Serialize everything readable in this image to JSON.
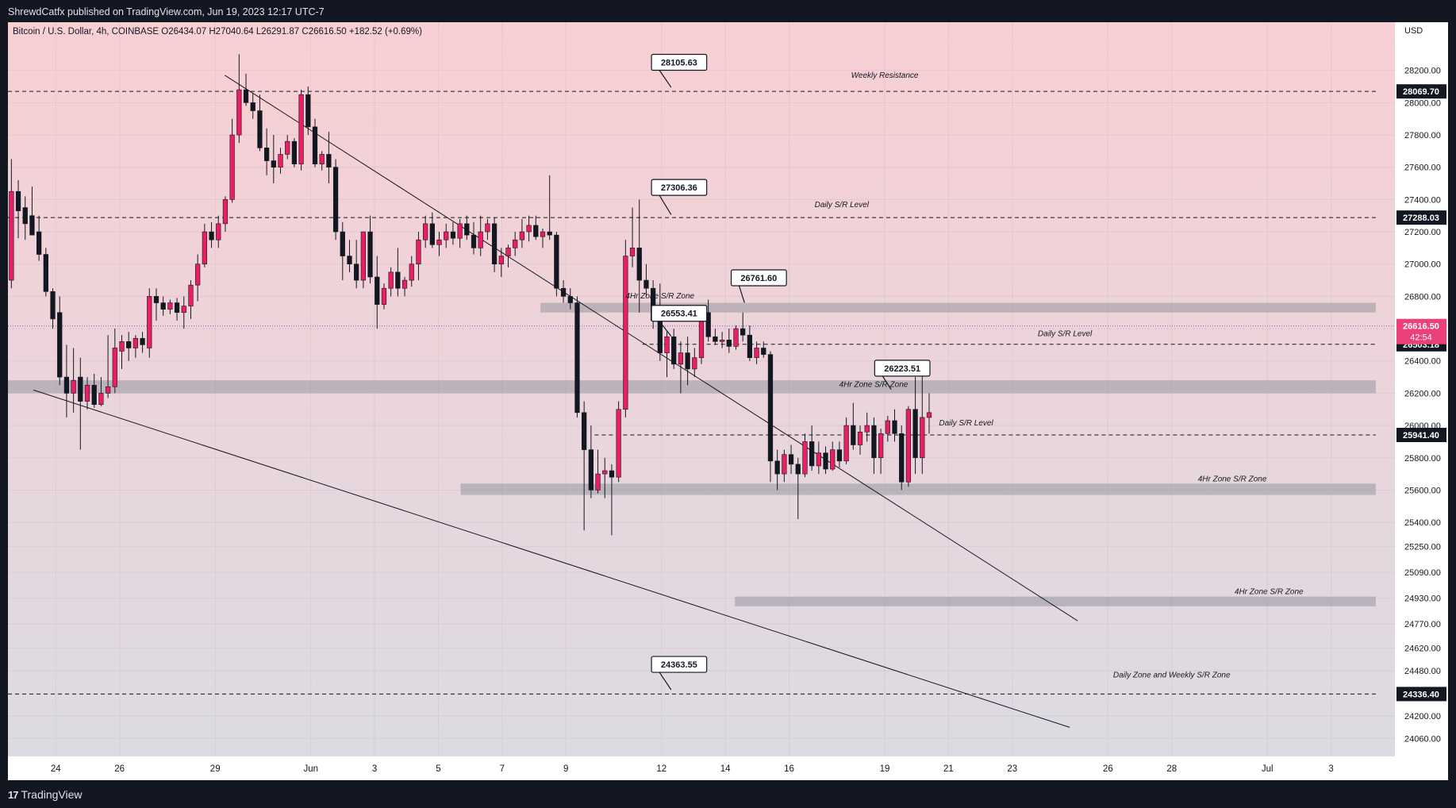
{
  "header": {
    "publisher_line": "ShrewdCatfx published on TradingView.com, Jun 19, 2023 12:17 UTC-7"
  },
  "symbol_line": "Bitcoin / U.S. Dollar, 4h, COINBASE  O26434.07  H27040.64  L26291.87  C26616.50  +182.52 (+0.69%)",
  "currency": "USD",
  "footer": {
    "logo_mark": "17",
    "logo_text": "TradingView"
  },
  "colors": {
    "background_top": "#f8cfd3",
    "background_bottom": "#dcdbe3",
    "up_candle": "#e91e63",
    "down_candle": "#131722",
    "zone": "#9598a1",
    "price_label": "#131722",
    "current_price": "#ec407a",
    "current_price_line": "#7e57c2"
  },
  "chart_data": {
    "type": "candlestick",
    "timeframe": "4h",
    "ylim": [
      23950,
      28400
    ],
    "xlim": [
      0,
      87
    ],
    "y_ticks": [
      "28200.00",
      "28000.00",
      "27800.00",
      "27600.00",
      "27400.00",
      "27200.00",
      "27000.00",
      "26800.00",
      "26600.00",
      "26400.00",
      "26200.00",
      "26000.00",
      "25800.00",
      "25600.00",
      "25400.00",
      "25250.00",
      "25090.00",
      "24930.00",
      "24770.00",
      "24620.00",
      "24480.00",
      "24200.00",
      "24060.00"
    ],
    "x_ticks": [
      {
        "label": "24",
        "x": 3
      },
      {
        "label": "26",
        "x": 7
      },
      {
        "label": "29",
        "x": 13
      },
      {
        "label": "Jun",
        "x": 19
      },
      {
        "label": "3",
        "x": 23
      },
      {
        "label": "5",
        "x": 27
      },
      {
        "label": "7",
        "x": 31
      },
      {
        "label": "9",
        "x": 35
      },
      {
        "label": "12",
        "x": 41
      },
      {
        "label": "14",
        "x": 45
      },
      {
        "label": "16",
        "x": 49
      },
      {
        "label": "19",
        "x": 55
      },
      {
        "label": "21",
        "x": 59
      },
      {
        "label": "23",
        "x": 63
      },
      {
        "label": "26",
        "x": 69
      },
      {
        "label": "28",
        "x": 73
      },
      {
        "label": "Jul",
        "x": 79
      },
      {
        "label": "3",
        "x": 83
      }
    ],
    "current_price": {
      "value": 26616.5,
      "label": "26616.50",
      "countdown": "42:54"
    },
    "price_levels": [
      {
        "value": 28069.7,
        "label": "28069.70"
      },
      {
        "value": 27288.03,
        "label": "27288.03"
      },
      {
        "value": 26503.18,
        "label": "26503.18"
      },
      {
        "value": 25941.4,
        "label": "25941.40"
      },
      {
        "value": 24336.4,
        "label": "24336.40"
      }
    ],
    "horizontal_lines": [
      {
        "value": 28069.7,
        "x_start": 0,
        "x_end": 85.8
      },
      {
        "value": 27288.03,
        "x_start": 0,
        "x_end": 85.8
      },
      {
        "value": 26503.18,
        "x_start": 39.8,
        "x_end": 85.8
      },
      {
        "value": 25941.4,
        "x_start": 36.8,
        "x_end": 85.8
      },
      {
        "value": 24336.4,
        "x_start": 0,
        "x_end": 85.8
      }
    ],
    "zones": [
      {
        "low": 26700,
        "high": 26760,
        "x_start": 33.4,
        "x_end": 85.8
      },
      {
        "low": 26200,
        "high": 26280,
        "x_start": 0,
        "x_end": 85.8
      },
      {
        "low": 25570,
        "high": 25640,
        "x_start": 28.4,
        "x_end": 85.8
      },
      {
        "low": 24880,
        "high": 24940,
        "x_start": 45.6,
        "x_end": 85.8
      }
    ],
    "trendlines": [
      {
        "x1": 13.6,
        "y1": 28170,
        "x2": 67.1,
        "y2": 24790
      },
      {
        "x1": 1.6,
        "y1": 26220,
        "x2": 66.6,
        "y2": 24130
      }
    ],
    "annotations": [
      {
        "text": "Weekly Resistance",
        "x": 55.0,
        "y": 28155
      },
      {
        "text": "Daily S/R Level",
        "x": 52.3,
        "y": 27353
      },
      {
        "text": "4Hr Zone S/R Zone",
        "x": 40.9,
        "y": 26788
      },
      {
        "text": "Daily S/R Level",
        "x": 66.3,
        "y": 26553
      },
      {
        "text": "4Hr Zone S/R Zone",
        "x": 54.3,
        "y": 26240
      },
      {
        "text": "Daily S/R Level",
        "x": 60.1,
        "y": 26000
      },
      {
        "text": "4Hr Zone S/R Zone",
        "x": 76.8,
        "y": 25655
      },
      {
        "text": "4Hr Zone S/R Zone",
        "x": 79.1,
        "y": 24955
      },
      {
        "text": "Daily Zone and Weekly S/R Zone",
        "x": 73.0,
        "y": 24440
      }
    ],
    "callouts": [
      {
        "text": "28105.63",
        "box_x": 42.1,
        "box_y": 28250,
        "point_x": 41.6,
        "point_y": 28095
      },
      {
        "text": "27306.36",
        "box_x": 42.1,
        "box_y": 27475,
        "point_x": 41.6,
        "point_y": 27306
      },
      {
        "text": "26761.60",
        "box_x": 47.1,
        "box_y": 26915,
        "point_x": 46.2,
        "point_y": 26761
      },
      {
        "text": "26553.41",
        "box_x": 42.1,
        "box_y": 26695,
        "point_x": 41.6,
        "point_y": 26553
      },
      {
        "text": "26223.51",
        "box_x": 56.1,
        "box_y": 26355,
        "point_x": 55.4,
        "point_y": 26223
      },
      {
        "text": "24363.55",
        "box_x": 42.1,
        "box_y": 24520,
        "point_x": 41.6,
        "point_y": 24363
      }
    ],
    "candles": [
      {
        "o": 26900,
        "h": 27650,
        "l": 26850,
        "c": 27450
      },
      {
        "o": 27450,
        "h": 27520,
        "l": 27160,
        "c": 27330
      },
      {
        "o": 27350,
        "h": 27420,
        "l": 27150,
        "c": 27250
      },
      {
        "o": 27300,
        "h": 27480,
        "l": 27180,
        "c": 27180
      },
      {
        "o": 27200,
        "h": 27300,
        "l": 27020,
        "c": 27060
      },
      {
        "o": 27060,
        "h": 27100,
        "l": 26800,
        "c": 26830
      },
      {
        "o": 26830,
        "h": 26850,
        "l": 26600,
        "c": 26660
      },
      {
        "o": 26700,
        "h": 26800,
        "l": 26250,
        "c": 26300
      },
      {
        "o": 26300,
        "h": 26500,
        "l": 26050,
        "c": 26200
      },
      {
        "o": 26200,
        "h": 26480,
        "l": 26080,
        "c": 26280
      },
      {
        "o": 26300,
        "h": 26420,
        "l": 25850,
        "c": 26150
      },
      {
        "o": 26150,
        "h": 26300,
        "l": 26100,
        "c": 26250
      },
      {
        "o": 26250,
        "h": 26320,
        "l": 26110,
        "c": 26130
      },
      {
        "o": 26130,
        "h": 26300,
        "l": 26120,
        "c": 26200
      },
      {
        "o": 26200,
        "h": 26560,
        "l": 26170,
        "c": 26240
      },
      {
        "o": 26240,
        "h": 26600,
        "l": 26200,
        "c": 26480
      },
      {
        "o": 26460,
        "h": 26560,
        "l": 26350,
        "c": 26520
      },
      {
        "o": 26520,
        "h": 26580,
        "l": 26400,
        "c": 26480
      },
      {
        "o": 26480,
        "h": 26560,
        "l": 26420,
        "c": 26540
      },
      {
        "o": 26540,
        "h": 26580,
        "l": 26450,
        "c": 26500
      },
      {
        "o": 26480,
        "h": 26850,
        "l": 26420,
        "c": 26800
      },
      {
        "o": 26800,
        "h": 26850,
        "l": 26650,
        "c": 26760
      },
      {
        "o": 26760,
        "h": 26800,
        "l": 26680,
        "c": 26720
      },
      {
        "o": 26720,
        "h": 26780,
        "l": 26690,
        "c": 26760
      },
      {
        "o": 26760,
        "h": 26790,
        "l": 26650,
        "c": 26700
      },
      {
        "o": 26700,
        "h": 26800,
        "l": 26600,
        "c": 26740
      },
      {
        "o": 26740,
        "h": 26900,
        "l": 26660,
        "c": 26870
      },
      {
        "o": 26870,
        "h": 27060,
        "l": 26770,
        "c": 27000
      },
      {
        "o": 27000,
        "h": 27250,
        "l": 26980,
        "c": 27200
      },
      {
        "o": 27200,
        "h": 27260,
        "l": 27100,
        "c": 27150
      },
      {
        "o": 27150,
        "h": 27300,
        "l": 27100,
        "c": 27250
      },
      {
        "o": 27250,
        "h": 27420,
        "l": 27200,
        "c": 27400
      },
      {
        "o": 27400,
        "h": 27900,
        "l": 27380,
        "c": 27800
      },
      {
        "o": 27800,
        "h": 28300,
        "l": 27750,
        "c": 28080
      },
      {
        "o": 28080,
        "h": 28180,
        "l": 27980,
        "c": 28000
      },
      {
        "o": 28000,
        "h": 28060,
        "l": 27900,
        "c": 27950
      },
      {
        "o": 27950,
        "h": 28050,
        "l": 27700,
        "c": 27720
      },
      {
        "o": 27720,
        "h": 27840,
        "l": 27550,
        "c": 27640
      },
      {
        "o": 27640,
        "h": 27800,
        "l": 27500,
        "c": 27600
      },
      {
        "o": 27600,
        "h": 27720,
        "l": 27560,
        "c": 27680
      },
      {
        "o": 27680,
        "h": 27800,
        "l": 27650,
        "c": 27760
      },
      {
        "o": 27760,
        "h": 27780,
        "l": 27600,
        "c": 27620
      },
      {
        "o": 27620,
        "h": 28080,
        "l": 27580,
        "c": 28050
      },
      {
        "o": 28050,
        "h": 28100,
        "l": 27800,
        "c": 27850
      },
      {
        "o": 27850,
        "h": 27900,
        "l": 27600,
        "c": 27620
      },
      {
        "o": 27620,
        "h": 27700,
        "l": 27580,
        "c": 27680
      },
      {
        "o": 27680,
        "h": 27820,
        "l": 27500,
        "c": 27600
      },
      {
        "o": 27600,
        "h": 27650,
        "l": 27150,
        "c": 27200
      },
      {
        "o": 27200,
        "h": 27260,
        "l": 26900,
        "c": 27050
      },
      {
        "o": 27050,
        "h": 27150,
        "l": 26950,
        "c": 27000
      },
      {
        "o": 27000,
        "h": 27150,
        "l": 26850,
        "c": 26900
      },
      {
        "o": 26900,
        "h": 27200,
        "l": 26850,
        "c": 27200
      },
      {
        "o": 27200,
        "h": 27300,
        "l": 26880,
        "c": 26920
      },
      {
        "o": 26920,
        "h": 27050,
        "l": 26600,
        "c": 26750
      },
      {
        "o": 26750,
        "h": 26880,
        "l": 26720,
        "c": 26850
      },
      {
        "o": 26850,
        "h": 26980,
        "l": 26800,
        "c": 26950
      },
      {
        "o": 26950,
        "h": 27100,
        "l": 26800,
        "c": 26850
      },
      {
        "o": 26850,
        "h": 26920,
        "l": 26800,
        "c": 26900
      },
      {
        "o": 26900,
        "h": 27050,
        "l": 26860,
        "c": 27000
      },
      {
        "o": 27000,
        "h": 27200,
        "l": 26900,
        "c": 27150
      },
      {
        "o": 27150,
        "h": 27300,
        "l": 27100,
        "c": 27250
      },
      {
        "o": 27250,
        "h": 27320,
        "l": 27100,
        "c": 27120
      },
      {
        "o": 27120,
        "h": 27200,
        "l": 27050,
        "c": 27150
      },
      {
        "o": 27150,
        "h": 27250,
        "l": 27100,
        "c": 27200
      }
    ],
    "candles_4h_note": "",
    "candles2": [
      {
        "o": 27200,
        "h": 27260,
        "l": 27120,
        "c": 27160
      },
      {
        "o": 27160,
        "h": 27280,
        "l": 27100,
        "c": 27250
      },
      {
        "o": 27250,
        "h": 27300,
        "l": 27150,
        "c": 27180
      },
      {
        "o": 27180,
        "h": 27260,
        "l": 27060,
        "c": 27100
      },
      {
        "o": 27100,
        "h": 27300,
        "l": 27050,
        "c": 27200
      },
      {
        "o": 27200,
        "h": 27280,
        "l": 27150,
        "c": 27250
      },
      {
        "o": 27250,
        "h": 27290,
        "l": 26950,
        "c": 27000
      },
      {
        "o": 27000,
        "h": 27100,
        "l": 26920,
        "c": 27050
      },
      {
        "o": 27050,
        "h": 27120,
        "l": 26980,
        "c": 27100
      },
      {
        "o": 27100,
        "h": 27200,
        "l": 27050,
        "c": 27150
      },
      {
        "o": 27150,
        "h": 27280,
        "l": 27100,
        "c": 27200
      },
      {
        "o": 27200,
        "h": 27300,
        "l": 27140,
        "c": 27240
      },
      {
        "o": 27240,
        "h": 27300,
        "l": 27150,
        "c": 27170
      },
      {
        "o": 27170,
        "h": 27220,
        "l": 27100,
        "c": 27200
      },
      {
        "o": 27200,
        "h": 27550,
        "l": 27150,
        "c": 27180
      },
      {
        "o": 27180,
        "h": 27200,
        "l": 26800,
        "c": 26850
      },
      {
        "o": 26850,
        "h": 26900,
        "l": 26760,
        "c": 26800
      },
      {
        "o": 26800,
        "h": 26850,
        "l": 26720,
        "c": 26760
      },
      {
        "o": 26760,
        "h": 26800,
        "l": 26050,
        "c": 26080
      },
      {
        "o": 26080,
        "h": 26150,
        "l": 25350,
        "c": 25850
      },
      {
        "o": 25850,
        "h": 26000,
        "l": 25550,
        "c": 25600
      },
      {
        "o": 25600,
        "h": 25850,
        "l": 25580,
        "c": 25700
      },
      {
        "o": 25700,
        "h": 25800,
        "l": 25550,
        "c": 25720
      },
      {
        "o": 25720,
        "h": 25760,
        "l": 25320,
        "c": 25680
      },
      {
        "o": 25680,
        "h": 26150,
        "l": 25650,
        "c": 26100
      },
      {
        "o": 26100,
        "h": 27150,
        "l": 26050,
        "c": 27050
      },
      {
        "o": 27050,
        "h": 27350,
        "l": 26980,
        "c": 27100
      },
      {
        "o": 27100,
        "h": 27400,
        "l": 26700,
        "c": 26900
      },
      {
        "o": 26900,
        "h": 27000,
        "l": 26800,
        "c": 26850
      },
      {
        "o": 26850,
        "h": 26900,
        "l": 26600,
        "c": 26650
      },
      {
        "o": 26650,
        "h": 26880,
        "l": 26400,
        "c": 26450
      },
      {
        "o": 26450,
        "h": 26580,
        "l": 26300,
        "c": 26550
      },
      {
        "o": 26550,
        "h": 26600,
        "l": 26350,
        "c": 26380
      },
      {
        "o": 26380,
        "h": 26520,
        "l": 26200,
        "c": 26450
      },
      {
        "o": 26450,
        "h": 26550,
        "l": 26250,
        "c": 26350
      },
      {
        "o": 26350,
        "h": 26480,
        "l": 26300,
        "c": 26420
      },
      {
        "o": 26420,
        "h": 26720,
        "l": 26380,
        "c": 26700
      },
      {
        "o": 26700,
        "h": 26780,
        "l": 26520,
        "c": 26550
      },
      {
        "o": 26550,
        "h": 26600,
        "l": 26500,
        "c": 26520
      },
      {
        "o": 26520,
        "h": 26580,
        "l": 26480,
        "c": 26530
      },
      {
        "o": 26530,
        "h": 26600,
        "l": 26450,
        "c": 26490
      },
      {
        "o": 26490,
        "h": 26620,
        "l": 26470,
        "c": 26600
      },
      {
        "o": 26600,
        "h": 26700,
        "l": 26520,
        "c": 26560
      },
      {
        "o": 26560,
        "h": 26620,
        "l": 26400,
        "c": 26420
      },
      {
        "o": 26420,
        "h": 26520,
        "l": 26380,
        "c": 26480
      },
      {
        "o": 26480,
        "h": 26520,
        "l": 26420,
        "c": 26440
      },
      {
        "o": 26440,
        "h": 26460,
        "l": 25650,
        "c": 25780
      },
      {
        "o": 25780,
        "h": 25850,
        "l": 25600,
        "c": 25700
      },
      {
        "o": 25700,
        "h": 25850,
        "l": 25650,
        "c": 25820
      },
      {
        "o": 25820,
        "h": 25880,
        "l": 25700,
        "c": 25760
      },
      {
        "o": 25760,
        "h": 25800,
        "l": 25420,
        "c": 25700
      },
      {
        "o": 25700,
        "h": 25950,
        "l": 25680,
        "c": 25900
      },
      {
        "o": 25900,
        "h": 26000,
        "l": 25720,
        "c": 25750
      },
      {
        "o": 25750,
        "h": 25900,
        "l": 25700,
        "c": 25830
      },
      {
        "o": 25830,
        "h": 25870,
        "l": 25700,
        "c": 25730
      },
      {
        "o": 25730,
        "h": 25900,
        "l": 25720,
        "c": 25850
      },
      {
        "o": 25850,
        "h": 25900,
        "l": 25740,
        "c": 25780
      },
      {
        "o": 25780,
        "h": 26050,
        "l": 25760,
        "c": 26000
      },
      {
        "o": 26000,
        "h": 26140,
        "l": 25850,
        "c": 25880
      },
      {
        "o": 25880,
        "h": 26000,
        "l": 25820,
        "c": 25960
      },
      {
        "o": 25960,
        "h": 26080,
        "l": 25900,
        "c": 26000
      },
      {
        "o": 26000,
        "h": 26050,
        "l": 25700,
        "c": 25800
      },
      {
        "o": 25800,
        "h": 25980,
        "l": 25700,
        "c": 25950
      },
      {
        "o": 25950,
        "h": 26060,
        "l": 25900,
        "c": 26030
      },
      {
        "o": 26030,
        "h": 26100,
        "l": 25900,
        "c": 25950
      },
      {
        "o": 25950,
        "h": 26000,
        "l": 25600,
        "c": 25650
      },
      {
        "o": 25650,
        "h": 26120,
        "l": 25620,
        "c": 26100
      },
      {
        "o": 26100,
        "h": 26300,
        "l": 25700,
        "c": 25800
      },
      {
        "o": 25800,
        "h": 26400,
        "l": 25700,
        "c": 26050
      },
      {
        "o": 26050,
        "h": 26200,
        "l": 25950,
        "c": 26080
      }
    ]
  }
}
